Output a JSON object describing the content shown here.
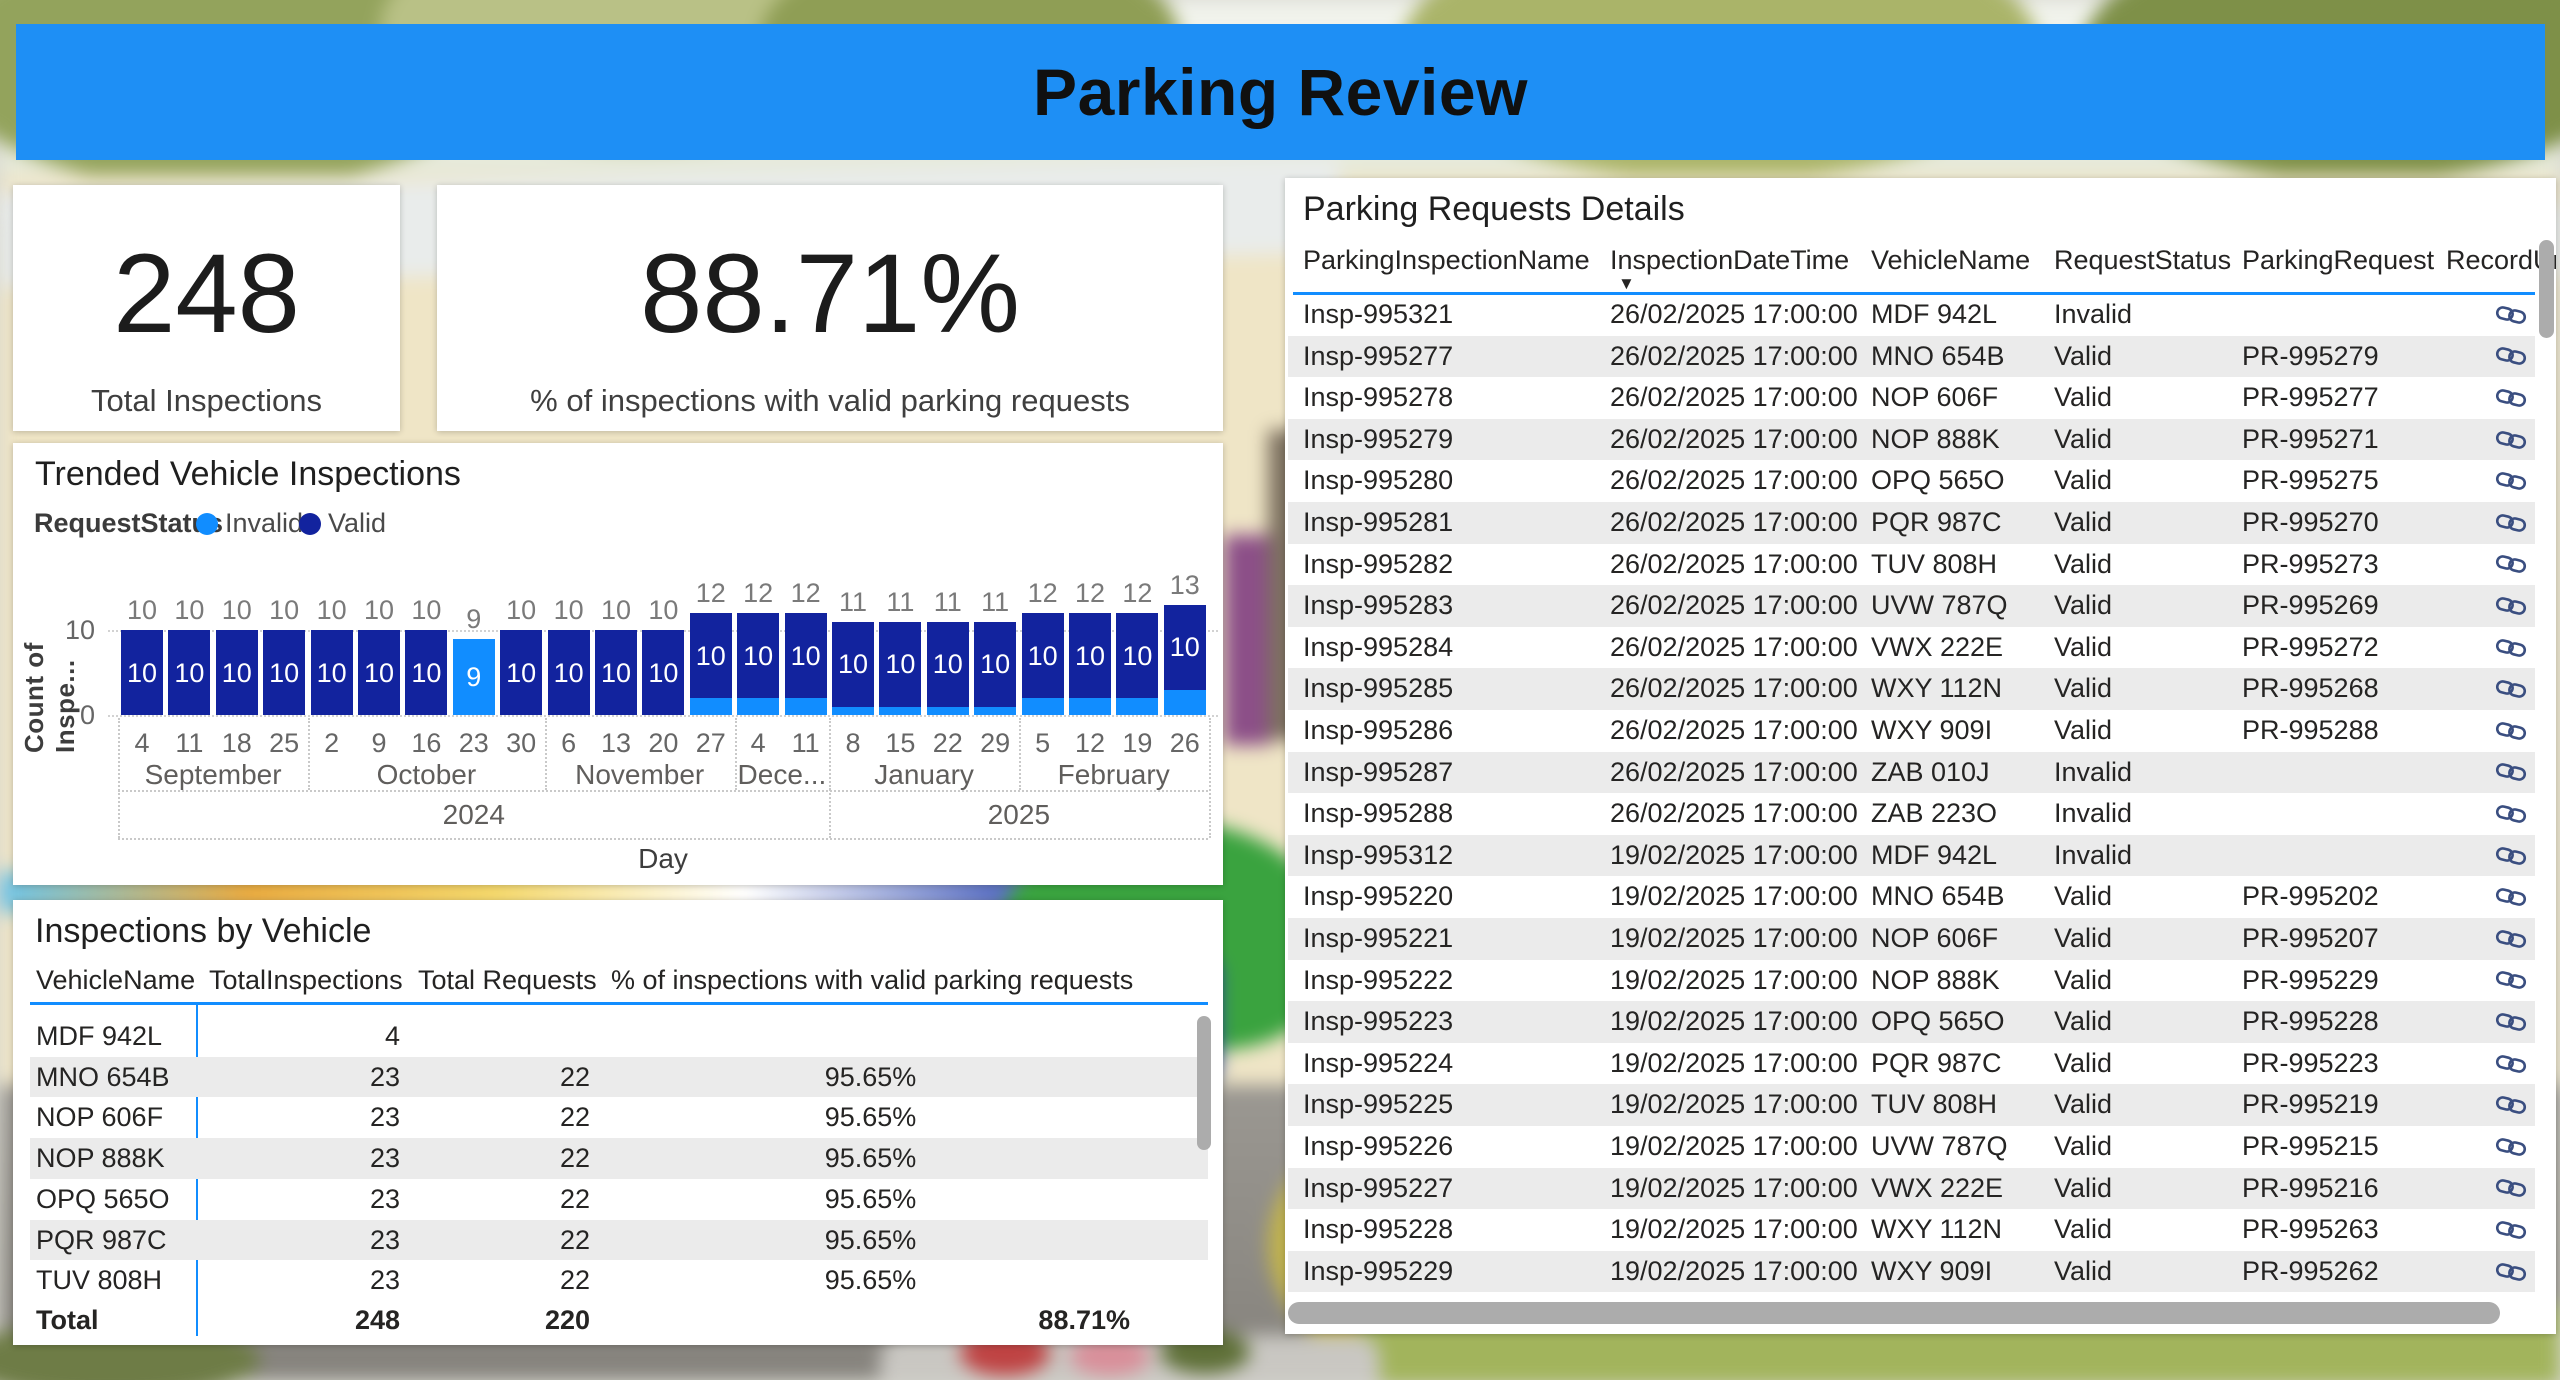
{
  "banner": {
    "title": "Parking Review",
    "bg_color": "#1E8FF5"
  },
  "kpis": [
    {
      "value": "248",
      "label": "Total Inspections"
    },
    {
      "value": "88.71%",
      "label": "% of inspections with valid parking requests"
    }
  ],
  "trend": {
    "title": "Trended Vehicle Inspections",
    "legend_title": "RequestStatus",
    "y_axis_title": "Count of Inspe...",
    "x_axis_title": "Day",
    "y_ticks": [
      {
        "value": 10,
        "label": "10"
      },
      {
        "value": 0,
        "label": "0"
      }
    ],
    "chart_data": {
      "type": "bar",
      "stacked": true,
      "title": "Trended Vehicle Inspections",
      "xlabel": "Day",
      "ylabel": "Count of Inspe...",
      "ylim": [
        0,
        13
      ],
      "legend_position": "top",
      "grid": "dotted",
      "categories": [
        "4",
        "11",
        "18",
        "25",
        "2",
        "9",
        "16",
        "23",
        "30",
        "6",
        "13",
        "20",
        "27",
        "4",
        "11",
        "8",
        "15",
        "22",
        "29",
        "5",
        "12",
        "19",
        "26"
      ],
      "series": [
        {
          "name": "Invalid",
          "color": "#118DFF",
          "values": [
            0,
            0,
            0,
            0,
            0,
            0,
            0,
            9,
            0,
            0,
            0,
            0,
            2,
            2,
            2,
            1,
            1,
            1,
            1,
            2,
            2,
            2,
            3
          ]
        },
        {
          "name": "Valid",
          "color": "#12239E",
          "values": [
            10,
            10,
            10,
            10,
            10,
            10,
            10,
            0,
            10,
            10,
            10,
            10,
            10,
            10,
            10,
            10,
            10,
            10,
            10,
            10,
            10,
            10,
            10
          ]
        }
      ],
      "totals": [
        10,
        10,
        10,
        10,
        10,
        10,
        10,
        9,
        10,
        10,
        10,
        10,
        12,
        12,
        12,
        11,
        11,
        11,
        11,
        12,
        12,
        12,
        13
      ],
      "inner_labels": [
        10,
        10,
        10,
        10,
        10,
        10,
        10,
        9,
        10,
        10,
        10,
        10,
        10,
        10,
        10,
        10,
        10,
        10,
        10,
        10,
        10,
        10,
        10
      ],
      "month_bands": [
        {
          "label": "September",
          "span": 4
        },
        {
          "label": "October",
          "span": 5
        },
        {
          "label": "November",
          "span": 4
        },
        {
          "label": "Dece...",
          "span": 2
        },
        {
          "label": "January",
          "span": 4
        },
        {
          "label": "February",
          "span": 4
        }
      ],
      "year_bands": [
        {
          "label": "2024",
          "span": 15
        },
        {
          "label": "2025",
          "span": 8
        }
      ]
    }
  },
  "vehicle_table": {
    "title": "Inspections by Vehicle",
    "headers": [
      "VehicleName",
      "TotalInspections",
      "Total Requests",
      "% of inspections with valid parking requests"
    ],
    "rows": [
      [
        "MDF 942L",
        "4",
        "",
        ""
      ],
      [
        "MNO 654B",
        "23",
        "22",
        "95.65%"
      ],
      [
        "NOP 606F",
        "23",
        "22",
        "95.65%"
      ],
      [
        "NOP 888K",
        "23",
        "22",
        "95.65%"
      ],
      [
        "OPQ 565O",
        "23",
        "22",
        "95.65%"
      ],
      [
        "PQR 987C",
        "23",
        "22",
        "95.65%"
      ],
      [
        "TUV 808H",
        "23",
        "22",
        "95.65%"
      ]
    ],
    "total_row": [
      "Total",
      "248",
      "220",
      "88.71%"
    ]
  },
  "details_table": {
    "title": "Parking Requests Details",
    "headers": [
      "ParkingInspectionName",
      "InspectionDateTime",
      "VehicleName",
      "RequestStatus",
      "ParkingRequest",
      "RecordUrl"
    ],
    "sort": {
      "column": "InspectionDateTime",
      "direction": "descending"
    },
    "rows": [
      [
        "Insp-995321",
        "26/02/2025 17:00:00",
        "MDF 942L",
        "Invalid",
        ""
      ],
      [
        "Insp-995277",
        "26/02/2025 17:00:00",
        "MNO 654B",
        "Valid",
        "PR-995279"
      ],
      [
        "Insp-995278",
        "26/02/2025 17:00:00",
        "NOP 606F",
        "Valid",
        "PR-995277"
      ],
      [
        "Insp-995279",
        "26/02/2025 17:00:00",
        "NOP 888K",
        "Valid",
        "PR-995271"
      ],
      [
        "Insp-995280",
        "26/02/2025 17:00:00",
        "OPQ 565O",
        "Valid",
        "PR-995275"
      ],
      [
        "Insp-995281",
        "26/02/2025 17:00:00",
        "PQR 987C",
        "Valid",
        "PR-995270"
      ],
      [
        "Insp-995282",
        "26/02/2025 17:00:00",
        "TUV 808H",
        "Valid",
        "PR-995273"
      ],
      [
        "Insp-995283",
        "26/02/2025 17:00:00",
        "UVW 787Q",
        "Valid",
        "PR-995269"
      ],
      [
        "Insp-995284",
        "26/02/2025 17:00:00",
        "VWX 222E",
        "Valid",
        "PR-995272"
      ],
      [
        "Insp-995285",
        "26/02/2025 17:00:00",
        "WXY 112N",
        "Valid",
        "PR-995268"
      ],
      [
        "Insp-995286",
        "26/02/2025 17:00:00",
        "WXY 909I",
        "Valid",
        "PR-995288"
      ],
      [
        "Insp-995287",
        "26/02/2025 17:00:00",
        "ZAB 010J",
        "Invalid",
        ""
      ],
      [
        "Insp-995288",
        "26/02/2025 17:00:00",
        "ZAB 223O",
        "Invalid",
        ""
      ],
      [
        "Insp-995312",
        "19/02/2025 17:00:00",
        "MDF 942L",
        "Invalid",
        ""
      ],
      [
        "Insp-995220",
        "19/02/2025 17:00:00",
        "MNO 654B",
        "Valid",
        "PR-995202"
      ],
      [
        "Insp-995221",
        "19/02/2025 17:00:00",
        "NOP 606F",
        "Valid",
        "PR-995207"
      ],
      [
        "Insp-995222",
        "19/02/2025 17:00:00",
        "NOP 888K",
        "Valid",
        "PR-995229"
      ],
      [
        "Insp-995223",
        "19/02/2025 17:00:00",
        "OPQ 565O",
        "Valid",
        "PR-995228"
      ],
      [
        "Insp-995224",
        "19/02/2025 17:00:00",
        "PQR 987C",
        "Valid",
        "PR-995223"
      ],
      [
        "Insp-995225",
        "19/02/2025 17:00:00",
        "TUV 808H",
        "Valid",
        "PR-995219"
      ],
      [
        "Insp-995226",
        "19/02/2025 17:00:00",
        "UVW 787Q",
        "Valid",
        "PR-995215"
      ],
      [
        "Insp-995227",
        "19/02/2025 17:00:00",
        "VWX 222E",
        "Valid",
        "PR-995216"
      ],
      [
        "Insp-995228",
        "19/02/2025 17:00:00",
        "WXY 112N",
        "Valid",
        "PR-995263"
      ],
      [
        "Insp-995229",
        "19/02/2025 17:00:00",
        "WXY 909I",
        "Valid",
        "PR-995262"
      ]
    ]
  },
  "icons": {
    "record_link": "link-chain",
    "sort": "triangle-down"
  },
  "colors": {
    "banner_blue": "#1E8FF5",
    "invalid_blue": "#118DFF",
    "valid_navy": "#12239E",
    "stripe_gray": "#EBEBEB",
    "header_rule_blue": "#118DFF",
    "text_primary": "#252423",
    "text_secondary": "#605E5C",
    "scrollbar_gray": "#ACACAC",
    "link_icon_navy": "#3A4E80"
  }
}
